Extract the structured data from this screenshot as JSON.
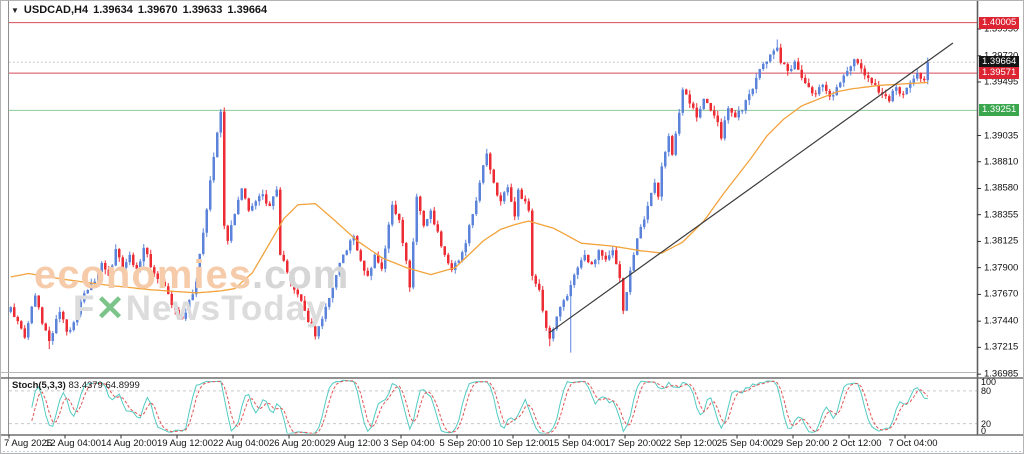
{
  "window": {
    "collapse_icon": "▼",
    "symbol_period": "USDCAD,H4",
    "quote_open": "1.39634",
    "quote_high": "1.39670",
    "quote_low": "1.39633",
    "quote_close": "1.39664"
  },
  "watermark": {
    "brand": "economies",
    "brand_suffix": ".com",
    "news_f": "F",
    "news_x": "✕",
    "news_rest": "NewsToday"
  },
  "chart_data": {
    "type": "candlestick",
    "symbol": "USDCAD",
    "timeframe": "H4",
    "current_bar_ohlc": {
      "open": 1.39634,
      "high": 1.3967,
      "low": 1.39633,
      "close": 1.39664
    },
    "bars": 263,
    "bars_per_x_label": 16,
    "x_labels": [
      "7 Aug 2025",
      "12 Aug 04:00",
      "14 Aug 20:00",
      "19 Aug 12:00",
      "22 Aug 04:00",
      "26 Aug 20:00",
      "29 Aug 12:00",
      "3 Sep 04:00",
      "5 Sep 20:00",
      "10 Sep 12:00",
      "15 Sep 04:00",
      "17 Sep 20:00",
      "22 Sep 12:00",
      "25 Sep 04:00",
      "29 Sep 20:00",
      "2 Oct 12:00",
      "7 Oct 04:00"
    ],
    "y_ticks": [
      "1.39950",
      "1.39720",
      "1.39495",
      "1.39035",
      "1.38810",
      "1.38580",
      "1.38355",
      "1.38125",
      "1.37900",
      "1.37670",
      "1.37440",
      "1.37215",
      "1.36985"
    ],
    "ylim": [
      1.369,
      1.401
    ],
    "grid": "off",
    "levels": [
      {
        "name": "resistance-line",
        "price": 1.40005,
        "label": "1.40005",
        "line_color": "#d84a56",
        "badge_bg": "#dd2433",
        "style": "solid"
      },
      {
        "name": "current-price-line",
        "price": 1.39664,
        "label": "1.39664",
        "line_color": "#bdbdbd",
        "badge_bg": "#151515",
        "style": "dotted"
      },
      {
        "name": "pivot-line",
        "price": 1.39571,
        "label": "1.39571",
        "line_color": "#d84a56",
        "badge_bg": "#dd2433",
        "style": "solid"
      },
      {
        "name": "support-line",
        "price": 1.39251,
        "label": "1.39251",
        "line_color": "#8fca94",
        "badge_bg": "#3aa74e",
        "style": "solid"
      }
    ],
    "price_path": [
      [
        0,
        1.3756
      ],
      [
        2,
        1.3744
      ],
      [
        4,
        1.373
      ],
      [
        7,
        1.3766
      ],
      [
        9,
        1.3742
      ],
      [
        11,
        1.3727
      ],
      [
        14,
        1.3752
      ],
      [
        16,
        1.3735
      ],
      [
        18,
        1.3743
      ],
      [
        21,
        1.3768
      ],
      [
        24,
        1.3778
      ],
      [
        26,
        1.3794
      ],
      [
        28,
        1.3783
      ],
      [
        30,
        1.3806
      ],
      [
        32,
        1.379
      ],
      [
        34,
        1.3801
      ],
      [
        36,
        1.3789
      ],
      [
        38,
        1.3807
      ],
      [
        41,
        1.3785
      ],
      [
        44,
        1.3774
      ],
      [
        46,
        1.3758
      ],
      [
        49,
        1.3746
      ],
      [
        51,
        1.3762
      ],
      [
        53,
        1.3778
      ],
      [
        55,
        1.382
      ],
      [
        57,
        1.3865
      ],
      [
        59,
        1.3906
      ],
      [
        60,
        1.3924
      ],
      [
        61,
        1.3826
      ],
      [
        62,
        1.3813
      ],
      [
        64,
        1.3836
      ],
      [
        66,
        1.3858
      ],
      [
        68,
        1.3839
      ],
      [
        70,
        1.3847
      ],
      [
        72,
        1.3853
      ],
      [
        74,
        1.3843
      ],
      [
        76,
        1.3857
      ],
      [
        77,
        1.3801
      ],
      [
        79,
        1.3786
      ],
      [
        81,
        1.3771
      ],
      [
        84,
        1.3753
      ],
      [
        87,
        1.3731
      ],
      [
        89,
        1.3746
      ],
      [
        92,
        1.3773
      ],
      [
        95,
        1.3801
      ],
      [
        98,
        1.3817
      ],
      [
        100,
        1.3796
      ],
      [
        102,
        1.3783
      ],
      [
        104,
        1.3801
      ],
      [
        106,
        1.3789
      ],
      [
        109,
        1.3844
      ],
      [
        111,
        1.3831
      ],
      [
        113,
        1.3796
      ],
      [
        114,
        1.3773
      ],
      [
        116,
        1.3851
      ],
      [
        118,
        1.3826
      ],
      [
        120,
        1.3839
      ],
      [
        122,
        1.3821
      ],
      [
        124,
        1.3801
      ],
      [
        126,
        1.3788
      ],
      [
        128,
        1.3796
      ],
      [
        130,
        1.3811
      ],
      [
        132,
        1.3836
      ],
      [
        134,
        1.3863
      ],
      [
        136,
        1.3888
      ],
      [
        138,
        1.3863
      ],
      [
        140,
        1.3847
      ],
      [
        142,
        1.3859
      ],
      [
        144,
        1.3834
      ],
      [
        145,
        1.3857
      ],
      [
        147,
        1.3847
      ],
      [
        148,
        1.3839
      ],
      [
        149,
        1.3783
      ],
      [
        151,
        1.3771
      ],
      [
        152,
        1.3753
      ],
      [
        154,
        1.3729
      ],
      [
        156,
        1.3748
      ],
      [
        158,
        1.3762
      ],
      [
        160,
        1.3775
      ],
      [
        162,
        1.379
      ],
      [
        164,
        1.3801
      ],
      [
        166,
        1.3793
      ],
      [
        168,
        1.3805
      ],
      [
        170,
        1.3797
      ],
      [
        172,
        1.3805
      ],
      [
        174,
        1.3781
      ],
      [
        175,
        1.3753
      ],
      [
        176,
        1.3769
      ],
      [
        178,
        1.3801
      ],
      [
        180,
        1.3825
      ],
      [
        182,
        1.3843
      ],
      [
        184,
        1.3863
      ],
      [
        185,
        1.3851
      ],
      [
        186,
        1.3877
      ],
      [
        188,
        1.3903
      ],
      [
        189,
        1.3887
      ],
      [
        191,
        1.3923
      ],
      [
        192,
        1.3943
      ],
      [
        194,
        1.3931
      ],
      [
        196,
        1.3919
      ],
      [
        198,
        1.3935
      ],
      [
        200,
        1.3925
      ],
      [
        202,
        1.3915
      ],
      [
        203,
        1.3901
      ],
      [
        205,
        1.3927
      ],
      [
        207,
        1.3919
      ],
      [
        209,
        1.3925
      ],
      [
        211,
        1.3939
      ],
      [
        213,
        1.3953
      ],
      [
        215,
        1.3965
      ],
      [
        217,
        1.3973
      ],
      [
        219,
        1.3979
      ],
      [
        220,
        1.3966
      ],
      [
        222,
        1.3959
      ],
      [
        224,
        1.3967
      ],
      [
        226,
        1.3953
      ],
      [
        228,
        1.3945
      ],
      [
        230,
        1.3939
      ],
      [
        232,
        1.3947
      ],
      [
        234,
        1.3937
      ],
      [
        236,
        1.3945
      ],
      [
        238,
        1.3955
      ],
      [
        240,
        1.3963
      ],
      [
        241,
        1.3969
      ],
      [
        243,
        1.3961
      ],
      [
        245,
        1.3953
      ],
      [
        247,
        1.3947
      ],
      [
        249,
        1.3939
      ],
      [
        251,
        1.3933
      ],
      [
        253,
        1.3945
      ],
      [
        255,
        1.3939
      ],
      [
        257,
        1.3949
      ],
      [
        259,
        1.3957
      ],
      [
        261,
        1.3951
      ],
      [
        262,
        1.39664
      ]
    ],
    "wick_overrides": {
      "11": {
        "low": 1.372
      },
      "60": {
        "high": 1.39262
      },
      "154": {
        "low": 1.37225
      },
      "160": {
        "low": 1.3717
      },
      "219": {
        "high": 1.3986
      }
    },
    "ma_path": [
      [
        0,
        1.3782
      ],
      [
        5,
        1.3785
      ],
      [
        15,
        1.378
      ],
      [
        28,
        1.37748
      ],
      [
        40,
        1.3771
      ],
      [
        53,
        1.37683
      ],
      [
        60,
        1.377
      ],
      [
        64,
        1.3772
      ],
      [
        69,
        1.37855
      ],
      [
        73,
        1.3806
      ],
      [
        78,
        1.3832
      ],
      [
        82,
        1.3844
      ],
      [
        87,
        1.3845
      ],
      [
        92,
        1.3832
      ],
      [
        99,
        1.3813
      ],
      [
        106,
        1.37985
      ],
      [
        113,
        1.379
      ],
      [
        120,
        1.3784
      ],
      [
        127,
        1.379
      ],
      [
        135,
        1.3813
      ],
      [
        140,
        1.3823
      ],
      [
        144,
        1.3827
      ],
      [
        148,
        1.383
      ],
      [
        155,
        1.3824
      ],
      [
        163,
        1.3811
      ],
      [
        172,
        1.38085
      ],
      [
        180,
        1.38045
      ],
      [
        186,
        1.38025
      ],
      [
        192,
        1.3812
      ],
      [
        198,
        1.383
      ],
      [
        204,
        1.3855
      ],
      [
        211,
        1.3882
      ],
      [
        216,
        1.3903
      ],
      [
        221,
        1.3918
      ],
      [
        226,
        1.3929
      ],
      [
        231,
        1.3935
      ],
      [
        236,
        1.3941
      ],
      [
        240,
        1.39435
      ],
      [
        248,
        1.39465
      ],
      [
        256,
        1.3948
      ],
      [
        262,
        1.3949
      ]
    ],
    "trendline": {
      "from_bar": 153.8,
      "from_price": 1.37339,
      "to_bar": 269.2,
      "to_price": 1.3983,
      "color": "#3a3a3a"
    },
    "colors": {
      "bull": "#5b83da",
      "bear": "#ed2b33",
      "ma": "#f2a33c",
      "stoch_k": "#53cbc2",
      "stoch_d": "#e25555"
    },
    "stochastic": {
      "name": "Stoch(5,3,3)",
      "params": [
        5,
        3,
        3
      ],
      "k_value": "83.4379",
      "d_value": "64.8999",
      "levels": [
        80,
        20
      ],
      "y_ticks": [
        "100",
        "80",
        "20",
        "0"
      ],
      "range": [
        0,
        100
      ]
    }
  }
}
